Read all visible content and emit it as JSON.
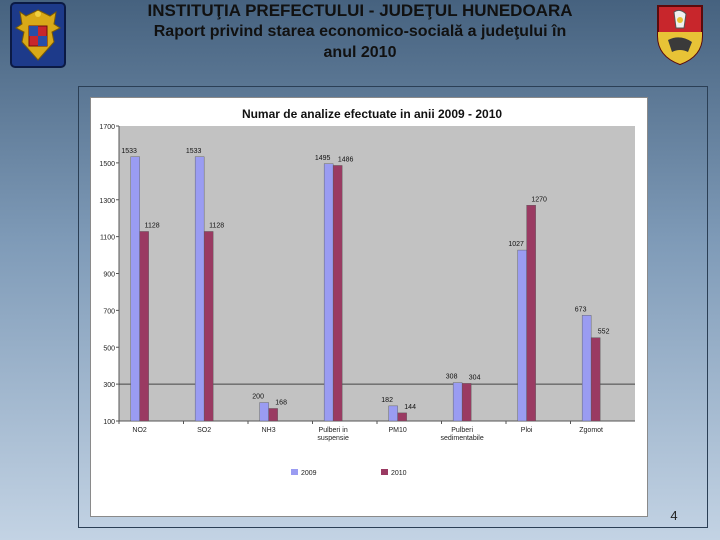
{
  "header": {
    "line1": "INSTITUŢIA PREFECTULUI - JUDEŢUL HUNEDOARA",
    "line2": "Raport privind starea economico-socială a judeţului în",
    "line3": "anul 2010"
  },
  "slide_number": "4",
  "chart_data": {
    "type": "bar",
    "title": "Numar de analize efectuate in anii 2009 - 2010",
    "categories": [
      "NO2",
      "SO2",
      "NH3",
      "Pulberi in suspensie",
      "PM10",
      "Pulberi sedimentabile",
      "Ploi",
      "Zgomot"
    ],
    "category_lines": [
      [
        "NO2"
      ],
      [
        "SO2"
      ],
      [
        "NH3"
      ],
      [
        "Pulberi in",
        "suspensie"
      ],
      [
        "PM10"
      ],
      [
        "Pulberi",
        "sedimentabile"
      ],
      [
        "Ploi"
      ],
      [
        "Zgomot"
      ]
    ],
    "series": [
      {
        "name": "2009",
        "values": [
          1533,
          1533,
          200,
          1495,
          182,
          308,
          1027,
          673
        ]
      },
      {
        "name": "2010",
        "values": [
          1128,
          1128,
          168,
          1486,
          144,
          304,
          1270,
          552
        ]
      }
    ],
    "ylim": [
      100,
      1700
    ],
    "yticks": [
      100,
      300,
      500,
      700,
      900,
      1100,
      1300,
      1500,
      1700
    ],
    "xlabel": "",
    "ylabel": "",
    "legend": "bottom",
    "grid": false,
    "colors": {
      "series": [
        "#9a9cf2",
        "#9a3a62"
      ],
      "plot_bg": "#c2c2c2"
    }
  }
}
